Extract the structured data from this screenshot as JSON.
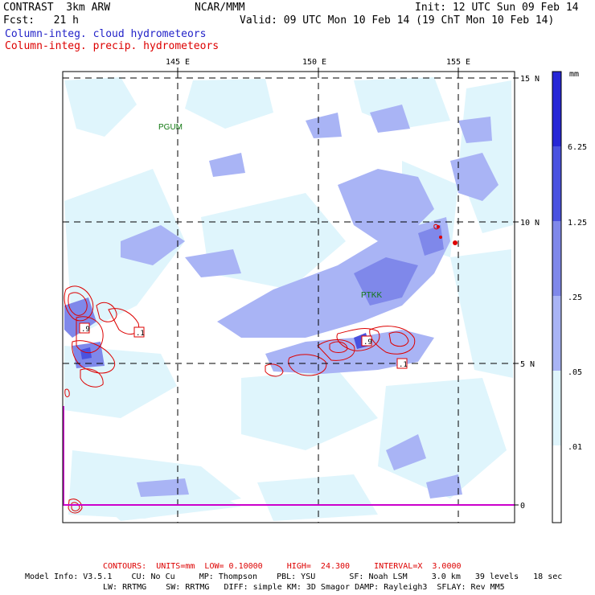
{
  "header": {
    "model": "CONTRAST  3km ARW",
    "center": "NCAR/MMM",
    "init": "Init: 12 UTC Sun 09 Feb 14",
    "fcst": "Fcst:   21 h",
    "valid": "Valid: 09 UTC Mon 10 Feb 14 (19 ChT Mon 10 Feb 14)",
    "field1": "Column-integ. cloud hydrometeors",
    "field2": "Column-integ. precip. hydrometeors"
  },
  "map": {
    "lon_labels": [
      "145 E",
      "150 E",
      "155 E"
    ],
    "lat_labels": [
      "15 N",
      "10 N",
      "5 N",
      "0"
    ],
    "stations": [
      "PGUM",
      "PTKK"
    ],
    "contour_labels": [
      ".9",
      ".1",
      ".9",
      ".1"
    ],
    "colors": {
      "lightest": "#dff5fc",
      "light": "#a9b4f5",
      "medium": "#7f88ea",
      "dark": "#4a52e0",
      "darkest": "#2626d6",
      "contour": "#dd0000",
      "station": "#117711",
      "boundary": "#cc00cc"
    }
  },
  "colorbar": {
    "units": "mm",
    "ticks": [
      "6.25",
      "1.25",
      ".25",
      ".05",
      ".01"
    ]
  },
  "footer": {
    "contours": "CONTOURS:  UNITS=mm  LOW= 0.10000     HIGH=  24.300     INTERVAL=X  3.0000",
    "model_line1": "Model Info: V3.5.1    CU: No Cu     MP: Thompson    PBL: YSU       SF: Noah LSM     3.0 km   39 levels   18 sec",
    "model_line2": "LW: RRTMG    SW: RRTMG   DIFF: simple KM: 3D Smagor DAMP: Rayleigh3  SFLAY: Rev MM5"
  }
}
